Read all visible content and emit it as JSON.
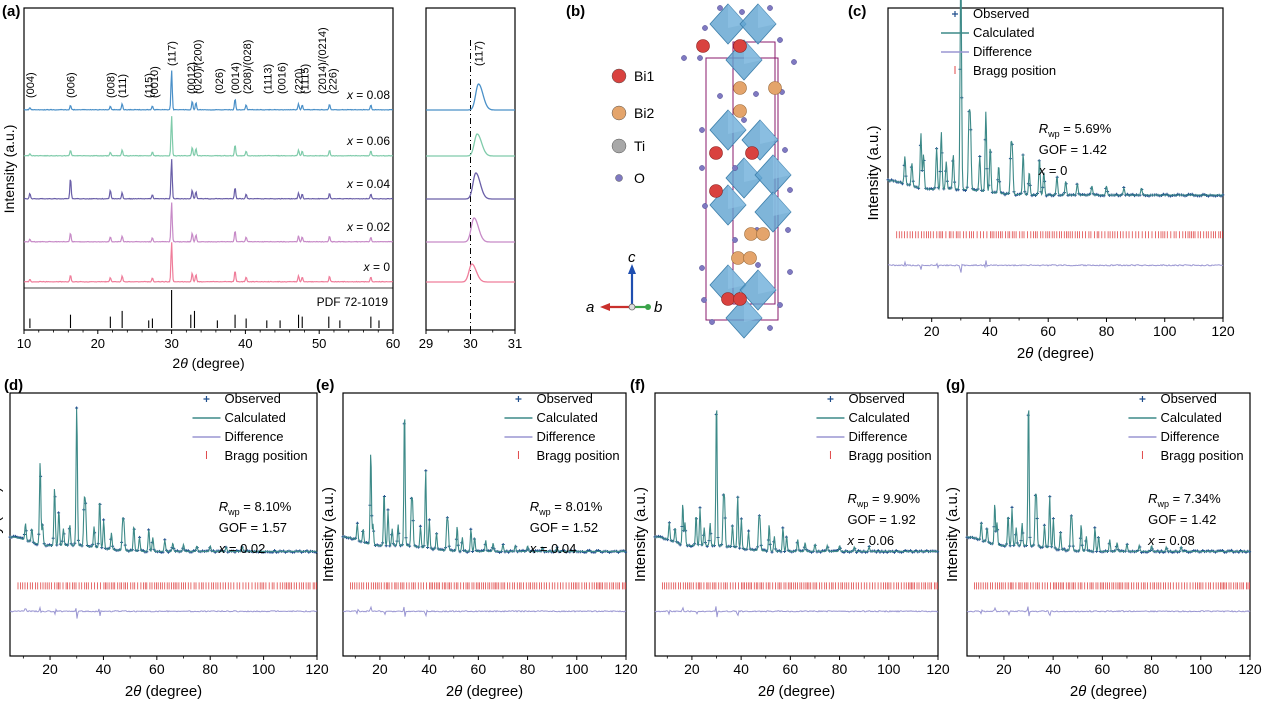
{
  "panel_labels": {
    "a": "(a)",
    "b": "(b)",
    "c": "(c)",
    "d": "(d)",
    "e": "(e)",
    "f": "(f)",
    "g": "(g)"
  },
  "colors": {
    "x008": "#4a90c8",
    "x006": "#7fcbaa",
    "x004": "#6a5fa8",
    "x002": "#c78ac7",
    "x0": "#ef7d9a",
    "ref": "#000000",
    "observed": "#1f4e8c",
    "calculated": "#3d8a88",
    "difference": "#9a96d2",
    "bragg": "#e0494a",
    "bi1": "#d9423f",
    "bi2": "#e4a46b",
    "ti": "#a8a8a8",
    "o": "#7f79c1",
    "octahedra": "#5fa3d0",
    "cell": "#8a1a6b"
  },
  "chart_data": [
    {
      "id": "a-main",
      "type": "line",
      "title": "",
      "xlabel": "2θ (degree)",
      "ylabel": "Intensity (a.u.)",
      "xlim": [
        10,
        60
      ],
      "xticks": [
        10,
        20,
        30,
        40,
        50,
        60
      ],
      "reference_label": "PDF 72-1019",
      "reference_lines": [
        {
          "x": 10.8,
          "h": 0.25
        },
        {
          "x": 16.3,
          "h": 0.35
        },
        {
          "x": 21.7,
          "h": 0.3
        },
        {
          "x": 23.3,
          "h": 0.45
        },
        {
          "x": 26.9,
          "h": 0.2
        },
        {
          "x": 27.4,
          "h": 0.25
        },
        {
          "x": 30.0,
          "h": 1.0
        },
        {
          "x": 32.6,
          "h": 0.35
        },
        {
          "x": 33.1,
          "h": 0.45
        },
        {
          "x": 36.2,
          "h": 0.2
        },
        {
          "x": 38.6,
          "h": 0.35
        },
        {
          "x": 40.1,
          "h": 0.25
        },
        {
          "x": 42.9,
          "h": 0.2
        },
        {
          "x": 44.7,
          "h": 0.2
        },
        {
          "x": 47.2,
          "h": 0.35
        },
        {
          "x": 47.7,
          "h": 0.3
        },
        {
          "x": 51.3,
          "h": 0.3
        },
        {
          "x": 52.8,
          "h": 0.2
        },
        {
          "x": 57.0,
          "h": 0.3
        },
        {
          "x": 58.1,
          "h": 0.2
        }
      ],
      "peak_labels": [
        "(004)",
        "(006)",
        "(008)",
        "(111)",
        "(115)",
        "(0010)",
        "(117)",
        "(0012)",
        "(020)/(200)",
        "(026)",
        "(0014)",
        "(208)/(028)",
        "(1113)",
        "(0016)",
        "(220)",
        "(1115)",
        "(2014)/(0214)",
        "(226)"
      ],
      "peak_label_positions": [
        10.8,
        16.3,
        21.7,
        23.3,
        26.9,
        27.6,
        30.0,
        32.6,
        33.5,
        36.4,
        38.6,
        40.2,
        43.0,
        44.9,
        47.2,
        48.0,
        50.4,
        51.8
      ],
      "series": [
        {
          "name": "x = 0.08",
          "color_key": "x008"
        },
        {
          "name": "x = 0.06",
          "color_key": "x006"
        },
        {
          "name": "x = 0.04",
          "color_key": "x004"
        },
        {
          "name": "x = 0.02",
          "color_key": "x002"
        },
        {
          "name": "x = 0",
          "color_key": "x0"
        }
      ],
      "peaks": [
        [
          10.8,
          0.08
        ],
        [
          16.3,
          0.28
        ],
        [
          21.7,
          0.18
        ],
        [
          23.3,
          0.15
        ],
        [
          27.4,
          0.1
        ],
        [
          30.0,
          1.0
        ],
        [
          32.8,
          0.22
        ],
        [
          33.3,
          0.18
        ],
        [
          38.6,
          0.28
        ],
        [
          40.1,
          0.12
        ],
        [
          47.2,
          0.15
        ],
        [
          47.7,
          0.12
        ],
        [
          51.4,
          0.14
        ],
        [
          57.0,
          0.12
        ]
      ],
      "series_peak_scale": [
        {
          "16.3": 0.4,
          "21.7": 0.5,
          "10.8": 0.6
        },
        {
          "16.3": 0.5,
          "21.7": 0.5,
          "10.8": 0.6
        },
        {
          "16.3": 1.9,
          "21.7": 1.2,
          "10.8": 1.7
        },
        {
          "16.3": 0.8,
          "21.7": 0.7,
          "10.8": 0.8
        },
        {
          "16.3": 0.6,
          "21.7": 0.6,
          "10.8": 0.7
        }
      ]
    },
    {
      "id": "a-zoom",
      "type": "line",
      "xlabel": "",
      "xlim": [
        29,
        31
      ],
      "xticks": [
        29,
        30,
        31
      ],
      "peak_label": "(117)",
      "dashed_line_x": 30.0,
      "series": [
        {
          "name": "x = 0.08",
          "peak_x": 30.18,
          "color_key": "x008"
        },
        {
          "name": "x = 0.06",
          "peak_x": 30.15,
          "color_key": "x006"
        },
        {
          "name": "x = 0.04",
          "peak_x": 30.12,
          "color_key": "x004"
        },
        {
          "name": "x = 0.02",
          "peak_x": 30.08,
          "color_key": "x002"
        },
        {
          "name": "x = 0",
          "peak_x": 30.03,
          "color_key": "x0"
        }
      ]
    },
    {
      "id": "c",
      "type": "line",
      "x_var": "0",
      "xlabel": "2θ (degree)",
      "ylabel": "Intensity (a.u.)",
      "xlim": [
        5,
        120
      ],
      "xticks": [
        20,
        40,
        60,
        80,
        100,
        120
      ],
      "legend": [
        "Observed",
        "Calculated",
        "Difference",
        "Bragg position"
      ],
      "rwp": "= 5.69%",
      "gof": "GOF = 1.42",
      "x_text": "= 0"
    },
    {
      "id": "d",
      "type": "line",
      "x_var": "0.02",
      "xlabel": "2θ (degree)",
      "ylabel": "Intensity (a.u.)",
      "xlim": [
        5,
        120
      ],
      "xticks": [
        20,
        40,
        60,
        80,
        100,
        120
      ],
      "legend": [
        "Observed",
        "Calculated",
        "Difference",
        "Bragg position"
      ],
      "rwp": "= 8.10%",
      "gof": "GOF = 1.57",
      "x_text": "= 0.02"
    },
    {
      "id": "e",
      "type": "line",
      "x_var": "0.04",
      "xlabel": "2θ (degree)",
      "ylabel": "Intensity (a.u.)",
      "xlim": [
        5,
        120
      ],
      "xticks": [
        20,
        40,
        60,
        80,
        100,
        120
      ],
      "legend": [
        "Observed",
        "Calculated",
        "Difference",
        "Bragg position"
      ],
      "rwp": "= 8.01%",
      "gof": "GOF = 1.52",
      "x_text": "= 0.04"
    },
    {
      "id": "f",
      "type": "line",
      "x_var": "0.06",
      "xlabel": "2θ (degree)",
      "ylabel": "Intensity (a.u.)",
      "xlim": [
        5,
        120
      ],
      "xticks": [
        20,
        40,
        60,
        80,
        100,
        120
      ],
      "legend": [
        "Observed",
        "Calculated",
        "Difference",
        "Bragg position"
      ],
      "rwp": "= 9.90%",
      "gof": "GOF = 1.92",
      "x_text": "= 0.06"
    },
    {
      "id": "g",
      "type": "line",
      "x_var": "0.08",
      "xlabel": "2θ (degree)",
      "ylabel": "Intensity (a.u.)",
      "xlim": [
        5,
        120
      ],
      "xticks": [
        20,
        40,
        60,
        80,
        100,
        120
      ],
      "legend": [
        "Observed",
        "Calculated",
        "Difference",
        "Bragg position"
      ],
      "rwp": "= 7.34%",
      "gof": "GOF = 1.42",
      "x_text": "= 0.08"
    }
  ],
  "structure": {
    "legend": [
      {
        "label": "Bi1",
        "color_key": "bi1"
      },
      {
        "label": "Bi2",
        "color_key": "bi2"
      },
      {
        "label": "Ti",
        "color_key": "ti"
      },
      {
        "label": "O",
        "color_key": "o"
      }
    ],
    "axes": {
      "c": "c",
      "a": "a",
      "b": "b"
    }
  },
  "rietveld_peaks": [
    [
      10.8,
      0.12
    ],
    [
      13.2,
      0.1
    ],
    [
      16.3,
      0.4
    ],
    [
      17.2,
      0.15
    ],
    [
      21.7,
      0.3
    ],
    [
      23.3,
      0.25
    ],
    [
      25.0,
      0.12
    ],
    [
      27.4,
      0.15
    ],
    [
      30.0,
      1.0
    ],
    [
      32.8,
      0.3
    ],
    [
      33.3,
      0.28
    ],
    [
      36.5,
      0.15
    ],
    [
      38.6,
      0.35
    ],
    [
      40.1,
      0.2
    ],
    [
      43.0,
      0.12
    ],
    [
      47.2,
      0.2
    ],
    [
      47.7,
      0.18
    ],
    [
      51.4,
      0.18
    ],
    [
      53.5,
      0.1
    ],
    [
      57.0,
      0.16
    ],
    [
      58.5,
      0.1
    ],
    [
      63.0,
      0.08
    ],
    [
      66.0,
      0.06
    ],
    [
      70.0,
      0.05
    ],
    [
      75.0,
      0.04
    ],
    [
      80.0,
      0.04
    ],
    [
      86.0,
      0.03
    ],
    [
      92.0,
      0.03
    ]
  ]
}
